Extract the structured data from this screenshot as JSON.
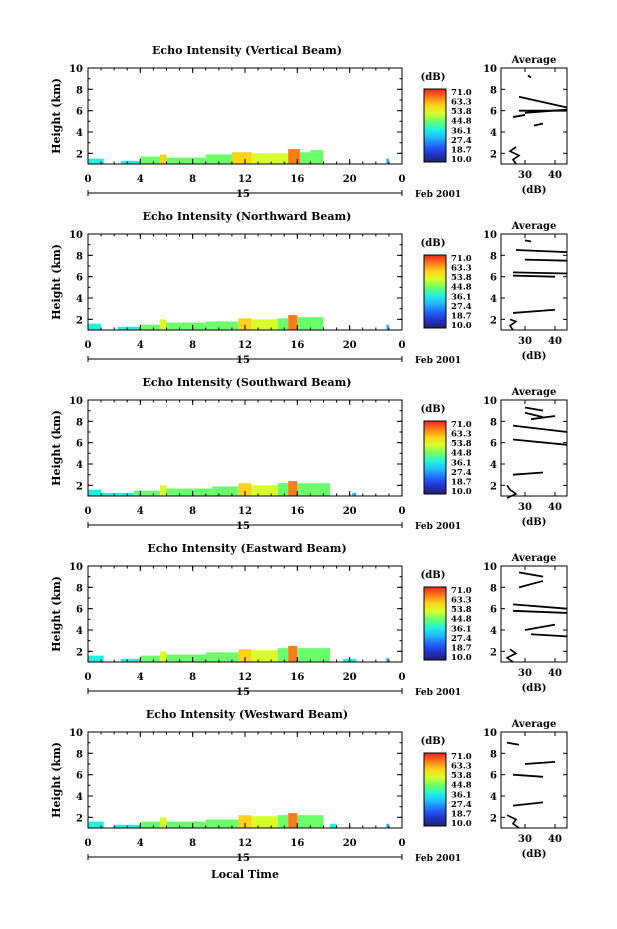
{
  "xlabel": "Local Time",
  "date": {
    "day": "15",
    "month_year": "Feb 2001"
  },
  "colorbar": {
    "unit": "(dB)",
    "ticks": [
      "71.0",
      "63.3",
      "53.8",
      "44.8",
      "36.1",
      "27.4",
      "18.7",
      "10.0"
    ],
    "colors": [
      "#ee2222",
      "#ff7a1a",
      "#ffd21a",
      "#d8ff2a",
      "#6cff6c",
      "#22f0dd",
      "#22b8ff",
      "#2266ff",
      "#2233cc",
      "#222266"
    ]
  },
  "chart_data": [
    {
      "type": "heatmap",
      "title": "Echo Intensity (Vertical Beam)",
      "xlabel": "",
      "ylabel": "Height (km)",
      "xlim": [
        0,
        24
      ],
      "ylim": [
        1,
        10
      ],
      "xticks": [
        "0",
        "4",
        "8",
        "12",
        "16",
        "20",
        "0"
      ],
      "yticks": [
        "2",
        "4",
        "6",
        "8",
        "10"
      ],
      "echo_spans": [
        {
          "x0": 0.0,
          "x1": 1.2,
          "top": 1.5,
          "level": 0.45
        },
        {
          "x0": 2.5,
          "x1": 4.0,
          "top": 1.3,
          "level": 0.4
        },
        {
          "x0": 4.0,
          "x1": 5.5,
          "top": 1.7,
          "level": 0.55
        },
        {
          "x0": 5.5,
          "x1": 6.0,
          "top": 1.9,
          "level": 0.75
        },
        {
          "x0": 6.0,
          "x1": 9.0,
          "top": 1.6,
          "level": 0.55
        },
        {
          "x0": 9.0,
          "x1": 11.0,
          "top": 1.9,
          "level": 0.6
        },
        {
          "x0": 11.0,
          "x1": 12.5,
          "top": 2.1,
          "level": 0.8
        },
        {
          "x0": 12.5,
          "x1": 14.0,
          "top": 2.0,
          "level": 0.7
        },
        {
          "x0": 14.0,
          "x1": 15.3,
          "top": 2.0,
          "level": 0.65
        },
        {
          "x0": 15.3,
          "x1": 16.2,
          "top": 2.4,
          "level": 0.85
        },
        {
          "x0": 16.2,
          "x1": 17.0,
          "top": 2.1,
          "level": 0.6
        },
        {
          "x0": 17.0,
          "x1": 18.0,
          "top": 2.3,
          "level": 0.5
        },
        {
          "x0": 22.8,
          "x1": 23.0,
          "top": 1.5,
          "level": 0.35
        }
      ],
      "average": {
        "xlim": [
          22,
          44
        ],
        "xticks": [
          "30",
          "40"
        ],
        "xlabel": "(dB)",
        "title": "Average",
        "yticks": [
          "2",
          "4",
          "6",
          "8",
          "10"
        ],
        "lower_profile": [
          [
            27,
            1.0
          ],
          [
            26,
            1.4
          ],
          [
            28,
            1.8
          ],
          [
            25,
            2.2
          ],
          [
            27,
            2.6
          ]
        ],
        "strokes": [
          [
            28,
            7.3,
            44,
            6.3
          ],
          [
            28,
            6.0,
            44,
            6.0
          ],
          [
            30,
            5.8,
            44,
            6.1
          ],
          [
            33,
            4.6,
            36,
            4.8
          ],
          [
            26,
            5.4,
            30,
            5.6
          ],
          [
            31,
            9.3,
            32,
            9.1
          ]
        ]
      }
    },
    {
      "type": "heatmap",
      "title": "Echo Intensity (Northward Beam)",
      "xlabel": "",
      "ylabel": "Height (km)",
      "xlim": [
        0,
        24
      ],
      "ylim": [
        1,
        10
      ],
      "xticks": [
        "0",
        "4",
        "8",
        "12",
        "16",
        "20",
        "0"
      ],
      "yticks": [
        "2",
        "4",
        "6",
        "8",
        "10"
      ],
      "echo_spans": [
        {
          "x0": 0.0,
          "x1": 1.0,
          "top": 1.6,
          "level": 0.45
        },
        {
          "x0": 2.3,
          "x1": 4.0,
          "top": 1.3,
          "level": 0.4
        },
        {
          "x0": 4.0,
          "x1": 5.5,
          "top": 1.5,
          "level": 0.5
        },
        {
          "x0": 5.5,
          "x1": 6.0,
          "top": 2.0,
          "level": 0.7
        },
        {
          "x0": 6.0,
          "x1": 9.0,
          "top": 1.7,
          "level": 0.55
        },
        {
          "x0": 9.0,
          "x1": 11.5,
          "top": 1.8,
          "level": 0.6
        },
        {
          "x0": 11.5,
          "x1": 12.5,
          "top": 2.1,
          "level": 0.8
        },
        {
          "x0": 12.5,
          "x1": 14.5,
          "top": 2.0,
          "level": 0.65
        },
        {
          "x0": 14.5,
          "x1": 15.3,
          "top": 2.1,
          "level": 0.6
        },
        {
          "x0": 15.3,
          "x1": 16.0,
          "top": 2.4,
          "level": 0.85
        },
        {
          "x0": 16.0,
          "x1": 18.0,
          "top": 2.2,
          "level": 0.55
        },
        {
          "x0": 22.8,
          "x1": 23.0,
          "top": 1.5,
          "level": 0.35
        }
      ],
      "average": {
        "xlim": [
          22,
          44
        ],
        "xticks": [
          "30",
          "40"
        ],
        "xlabel": "(dB)",
        "title": "Average",
        "yticks": [
          "2",
          "4",
          "6",
          "8",
          "10"
        ],
        "lower_profile": [
          [
            26,
            1.0
          ],
          [
            25,
            1.4
          ],
          [
            27,
            1.8
          ],
          [
            25,
            2.0
          ]
        ],
        "strokes": [
          [
            27,
            8.5,
            44,
            8.3
          ],
          [
            30,
            7.6,
            44,
            7.5
          ],
          [
            26,
            6.4,
            44,
            6.3
          ],
          [
            26,
            6.1,
            40,
            6.0
          ],
          [
            26,
            2.6,
            40,
            2.9
          ],
          [
            30,
            9.4,
            32,
            9.3
          ]
        ]
      }
    },
    {
      "type": "heatmap",
      "title": "Echo Intensity (Southward Beam)",
      "xlabel": "",
      "ylabel": "Height (km)",
      "xlim": [
        0,
        24
      ],
      "ylim": [
        1,
        10
      ],
      "xticks": [
        "0",
        "4",
        "8",
        "12",
        "16",
        "20",
        "0"
      ],
      "yticks": [
        "2",
        "4",
        "6",
        "8",
        "10"
      ],
      "echo_spans": [
        {
          "x0": 0.0,
          "x1": 1.0,
          "top": 1.6,
          "level": 0.45
        },
        {
          "x0": 1.0,
          "x1": 3.5,
          "top": 1.3,
          "level": 0.4
        },
        {
          "x0": 3.5,
          "x1": 5.5,
          "top": 1.5,
          "level": 0.5
        },
        {
          "x0": 5.5,
          "x1": 6.0,
          "top": 2.0,
          "level": 0.7
        },
        {
          "x0": 6.0,
          "x1": 9.5,
          "top": 1.7,
          "level": 0.55
        },
        {
          "x0": 9.5,
          "x1": 11.5,
          "top": 1.9,
          "level": 0.6
        },
        {
          "x0": 11.5,
          "x1": 12.5,
          "top": 2.2,
          "level": 0.8
        },
        {
          "x0": 12.5,
          "x1": 14.5,
          "top": 2.0,
          "level": 0.65
        },
        {
          "x0": 14.5,
          "x1": 15.3,
          "top": 2.2,
          "level": 0.6
        },
        {
          "x0": 15.3,
          "x1": 16.0,
          "top": 2.4,
          "level": 0.85
        },
        {
          "x0": 16.0,
          "x1": 18.5,
          "top": 2.2,
          "level": 0.55
        },
        {
          "x0": 20.2,
          "x1": 20.5,
          "top": 1.3,
          "level": 0.35
        }
      ],
      "average": {
        "xlim": [
          22,
          44
        ],
        "xticks": [
          "30",
          "40"
        ],
        "xlabel": "(dB)",
        "title": "Average",
        "yticks": [
          "2",
          "4",
          "6",
          "8",
          "10"
        ],
        "lower_profile": [
          [
            24,
            0.8
          ],
          [
            27,
            1.2
          ],
          [
            25,
            1.6
          ],
          [
            24,
            2.0
          ]
        ],
        "strokes": [
          [
            30,
            9.3,
            36,
            9.0
          ],
          [
            30,
            8.8,
            36,
            8.4
          ],
          [
            32,
            8.2,
            40,
            8.5
          ],
          [
            26,
            7.6,
            44,
            7.0
          ],
          [
            26,
            6.3,
            44,
            5.8
          ],
          [
            26,
            3.0,
            36,
            3.2
          ]
        ]
      }
    },
    {
      "type": "heatmap",
      "title": "Echo Intensity (Eastward Beam)",
      "xlabel": "",
      "ylabel": "Height (km)",
      "xlim": [
        0,
        24
      ],
      "ylim": [
        1,
        10
      ],
      "xticks": [
        "0",
        "4",
        "8",
        "12",
        "16",
        "20",
        "0"
      ],
      "yticks": [
        "2",
        "4",
        "6",
        "8",
        "10"
      ],
      "echo_spans": [
        {
          "x0": 0.0,
          "x1": 1.2,
          "top": 1.6,
          "level": 0.45
        },
        {
          "x0": 2.5,
          "x1": 4.0,
          "top": 1.3,
          "level": 0.4
        },
        {
          "x0": 4.0,
          "x1": 5.5,
          "top": 1.6,
          "level": 0.5
        },
        {
          "x0": 5.5,
          "x1": 6.0,
          "top": 2.0,
          "level": 0.7
        },
        {
          "x0": 6.0,
          "x1": 9.0,
          "top": 1.7,
          "level": 0.55
        },
        {
          "x0": 9.0,
          "x1": 11.5,
          "top": 1.9,
          "level": 0.6
        },
        {
          "x0": 11.5,
          "x1": 12.5,
          "top": 2.2,
          "level": 0.8
        },
        {
          "x0": 12.5,
          "x1": 14.5,
          "top": 2.1,
          "level": 0.65
        },
        {
          "x0": 14.5,
          "x1": 15.3,
          "top": 2.3,
          "level": 0.6
        },
        {
          "x0": 15.3,
          "x1": 16.0,
          "top": 2.5,
          "level": 0.85
        },
        {
          "x0": 16.0,
          "x1": 18.5,
          "top": 2.3,
          "level": 0.55
        },
        {
          "x0": 19.5,
          "x1": 20.5,
          "top": 1.3,
          "level": 0.4
        },
        {
          "x0": 22.8,
          "x1": 23.0,
          "top": 1.4,
          "level": 0.35
        }
      ],
      "average": {
        "xlim": [
          22,
          44
        ],
        "xticks": [
          "30",
          "40"
        ],
        "xlabel": "(dB)",
        "title": "Average",
        "yticks": [
          "2",
          "4",
          "6",
          "8",
          "10"
        ],
        "lower_profile": [
          [
            26,
            1.0
          ],
          [
            24,
            1.4
          ],
          [
            27,
            1.8
          ],
          [
            25,
            2.2
          ]
        ],
        "strokes": [
          [
            28,
            9.4,
            36,
            9.0
          ],
          [
            28,
            8.0,
            36,
            8.6
          ],
          [
            26,
            6.4,
            44,
            6.0
          ],
          [
            26,
            5.8,
            44,
            5.6
          ],
          [
            30,
            4.0,
            40,
            4.5
          ],
          [
            32,
            3.6,
            44,
            3.4
          ]
        ]
      }
    },
    {
      "type": "heatmap",
      "title": "Echo Intensity (Westward Beam)",
      "xlabel": "Local Time",
      "ylabel": "Height (km)",
      "xlim": [
        0,
        24
      ],
      "ylim": [
        1,
        10
      ],
      "xticks": [
        "0",
        "4",
        "8",
        "12",
        "16",
        "20",
        "0"
      ],
      "yticks": [
        "2",
        "4",
        "6",
        "8",
        "10"
      ],
      "echo_spans": [
        {
          "x0": 0.0,
          "x1": 1.2,
          "top": 1.6,
          "level": 0.45
        },
        {
          "x0": 2.0,
          "x1": 4.0,
          "top": 1.3,
          "level": 0.4
        },
        {
          "x0": 4.0,
          "x1": 5.5,
          "top": 1.6,
          "level": 0.5
        },
        {
          "x0": 5.5,
          "x1": 6.0,
          "top": 2.0,
          "level": 0.7
        },
        {
          "x0": 6.0,
          "x1": 9.0,
          "top": 1.6,
          "level": 0.55
        },
        {
          "x0": 9.0,
          "x1": 11.5,
          "top": 1.8,
          "level": 0.6
        },
        {
          "x0": 11.5,
          "x1": 12.5,
          "top": 2.2,
          "level": 0.8
        },
        {
          "x0": 12.5,
          "x1": 14.5,
          "top": 2.1,
          "level": 0.65
        },
        {
          "x0": 14.5,
          "x1": 15.3,
          "top": 2.2,
          "level": 0.6
        },
        {
          "x0": 15.3,
          "x1": 16.0,
          "top": 2.4,
          "level": 0.85
        },
        {
          "x0": 16.0,
          "x1": 18.0,
          "top": 2.2,
          "level": 0.55
        },
        {
          "x0": 18.5,
          "x1": 19.0,
          "top": 1.4,
          "level": 0.4
        },
        {
          "x0": 22.8,
          "x1": 23.0,
          "top": 1.4,
          "level": 0.35
        }
      ],
      "average": {
        "xlim": [
          22,
          44
        ],
        "xticks": [
          "30",
          "40"
        ],
        "xlabel": "(dB)",
        "title": "Average",
        "yticks": [
          "2",
          "4",
          "6",
          "8",
          "10"
        ],
        "lower_profile": [
          [
            28,
            1.0
          ],
          [
            26,
            1.4
          ],
          [
            27,
            1.8
          ],
          [
            24,
            2.2
          ]
        ],
        "strokes": [
          [
            24,
            9.0,
            28,
            8.8
          ],
          [
            30,
            7.0,
            40,
            7.2
          ],
          [
            26,
            6.0,
            36,
            5.8
          ],
          [
            26,
            3.1,
            36,
            3.4
          ]
        ]
      }
    }
  ]
}
